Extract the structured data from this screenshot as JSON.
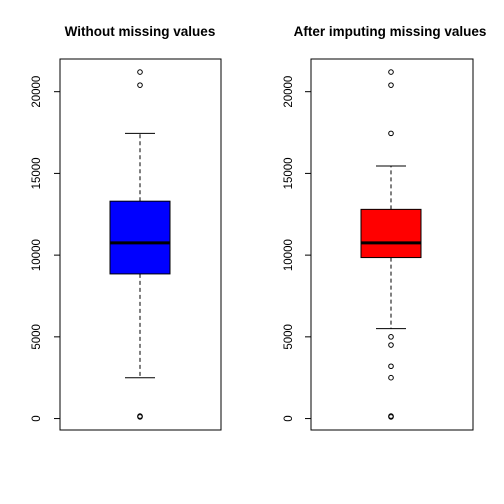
{
  "chart_data": [
    {
      "type": "box",
      "title": "Without missing values",
      "xlabel": "",
      "ylabel": "",
      "ylim": [
        -700,
        22000
      ],
      "yticks": [
        0,
        5000,
        10000,
        15000,
        20000
      ],
      "fill_color": "#0000ff",
      "box": {
        "lower_whisker": 2500,
        "q1": 8850,
        "median": 10750,
        "q3": 13300,
        "upper_whisker": 17450
      },
      "outliers": [
        100,
        150,
        20400,
        21200
      ]
    },
    {
      "type": "box",
      "title": "After imputing missing values",
      "xlabel": "",
      "ylabel": "",
      "ylim": [
        -700,
        22000
      ],
      "yticks": [
        0,
        5000,
        10000,
        15000,
        20000
      ],
      "fill_color": "#ff0000",
      "box": {
        "lower_whisker": 5500,
        "q1": 9850,
        "median": 10750,
        "q3": 12800,
        "upper_whisker": 15450
      },
      "outliers": [
        100,
        150,
        2500,
        3200,
        4500,
        5000,
        17450,
        20400,
        21200
      ]
    }
  ]
}
